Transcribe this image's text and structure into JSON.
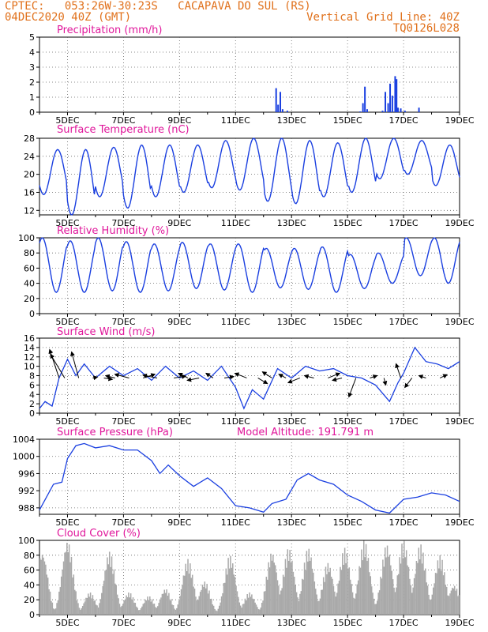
{
  "header": {
    "source_line": "CPTEC:   053:26W-30:23S   CACAPAVA DO SUL (RS)",
    "date_line": "04DEC2020 40Z (GMT)",
    "grid_note": "Vertical Grid Line: 40Z",
    "run_id": "TQ0126L028"
  },
  "colors": {
    "header_text": "#e0701a",
    "panel_title": "#e0179b",
    "series_line": "#1a3fe0",
    "cloud_bar": "#a9a9a9",
    "wind_arrow": "#000000"
  },
  "x_axis": {
    "tick_labels": [
      "5DEC",
      "7DEC",
      "9DEC",
      "11DEC",
      "13DEC",
      "15DEC",
      "17DEC",
      "19DEC"
    ]
  },
  "chart_data": [
    {
      "type": "bar",
      "title": "Precipitation (mm/h)",
      "ylim": [
        0,
        5
      ],
      "yticks": [
        0,
        1,
        2,
        3,
        4,
        5
      ],
      "x_range_days": [
        4.0,
        19.0
      ],
      "points": [
        {
          "day": 12.45,
          "value": 1.6
        },
        {
          "day": 12.52,
          "value": 0.5
        },
        {
          "day": 12.6,
          "value": 1.35
        },
        {
          "day": 12.68,
          "value": 0.2
        },
        {
          "day": 12.85,
          "value": 0.1
        },
        {
          "day": 15.45,
          "value": 0.05
        },
        {
          "day": 15.55,
          "value": 0.6
        },
        {
          "day": 15.62,
          "value": 1.7
        },
        {
          "day": 15.7,
          "value": 0.2
        },
        {
          "day": 16.25,
          "value": 0.1
        },
        {
          "day": 16.35,
          "value": 1.35
        },
        {
          "day": 16.45,
          "value": 0.6
        },
        {
          "day": 16.52,
          "value": 1.9
        },
        {
          "day": 16.6,
          "value": 1.1
        },
        {
          "day": 16.7,
          "value": 2.4
        },
        {
          "day": 16.75,
          "value": 2.2
        },
        {
          "day": 16.8,
          "value": 0.3
        },
        {
          "day": 16.9,
          "value": 0.25
        },
        {
          "day": 17.05,
          "value": 0.1
        },
        {
          "day": 17.55,
          "value": 0.3
        }
      ]
    },
    {
      "type": "line",
      "title": "Surface Temperature (nC)",
      "ylim": [
        11,
        28
      ],
      "yticks": [
        12,
        16,
        20,
        24,
        28
      ],
      "x_range_days": [
        4.0,
        19.0
      ],
      "diurnal_min_max": [
        {
          "day": 4,
          "min": 15.5,
          "max": 25.5
        },
        {
          "day": 5,
          "min": 11.0,
          "max": 25.5
        },
        {
          "day": 6,
          "min": 15.0,
          "max": 26.0
        },
        {
          "day": 7,
          "min": 12.5,
          "max": 26.5
        },
        {
          "day": 8,
          "min": 15.0,
          "max": 26.5
        },
        {
          "day": 9,
          "min": 16.0,
          "max": 26.5
        },
        {
          "day": 10,
          "min": 17.0,
          "max": 27.5
        },
        {
          "day": 11,
          "min": 16.5,
          "max": 28.0
        },
        {
          "day": 12,
          "min": 14.0,
          "max": 28.0
        },
        {
          "day": 13,
          "min": 13.5,
          "max": 27.5
        },
        {
          "day": 14,
          "min": 15.0,
          "max": 27.0
        },
        {
          "day": 15,
          "min": 16.0,
          "max": 28.0
        },
        {
          "day": 16,
          "min": 19.0,
          "max": 28.0
        },
        {
          "day": 17,
          "min": 20.0,
          "max": 27.5
        },
        {
          "day": 18,
          "min": 17.5,
          "max": 26.5
        }
      ]
    },
    {
      "type": "line",
      "title": "Relative Humidity (%)",
      "ylim": [
        0,
        100
      ],
      "yticks": [
        0,
        20,
        40,
        60,
        80,
        100
      ],
      "x_range_days": [
        4.0,
        19.0
      ],
      "diurnal_min_max": [
        {
          "day": 4,
          "min": 28,
          "max": 100
        },
        {
          "day": 5,
          "min": 28,
          "max": 96
        },
        {
          "day": 6,
          "min": 30,
          "max": 100
        },
        {
          "day": 7,
          "min": 28,
          "max": 95
        },
        {
          "day": 8,
          "min": 30,
          "max": 92
        },
        {
          "day": 9,
          "min": 33,
          "max": 94
        },
        {
          "day": 10,
          "min": 31,
          "max": 92
        },
        {
          "day": 11,
          "min": 28,
          "max": 92
        },
        {
          "day": 12,
          "min": 34,
          "max": 86
        },
        {
          "day": 13,
          "min": 32,
          "max": 86
        },
        {
          "day": 14,
          "min": 28,
          "max": 88
        },
        {
          "day": 15,
          "min": 33,
          "max": 78
        },
        {
          "day": 16,
          "min": 40,
          "max": 80
        },
        {
          "day": 17,
          "min": 50,
          "max": 100
        },
        {
          "day": 18,
          "min": 40,
          "max": 100
        }
      ]
    },
    {
      "type": "line",
      "title": "Surface Wind (m/s)",
      "ylim": [
        0,
        16
      ],
      "yticks": [
        0,
        2,
        4,
        6,
        8,
        10,
        12,
        14,
        16
      ],
      "x_range_days": [
        4.0,
        19.0
      ],
      "speed_points": [
        {
          "day": 4.0,
          "value": 1.0
        },
        {
          "day": 4.2,
          "value": 2.5
        },
        {
          "day": 4.45,
          "value": 1.5
        },
        {
          "day": 4.7,
          "value": 7.5
        },
        {
          "day": 5.0,
          "value": 11.5
        },
        {
          "day": 5.3,
          "value": 8.0
        },
        {
          "day": 5.6,
          "value": 10.5
        },
        {
          "day": 6.0,
          "value": 7.5
        },
        {
          "day": 6.5,
          "value": 10.0
        },
        {
          "day": 7.0,
          "value": 8.0
        },
        {
          "day": 7.5,
          "value": 9.5
        },
        {
          "day": 8.0,
          "value": 7.0
        },
        {
          "day": 8.5,
          "value": 10.0
        },
        {
          "day": 9.0,
          "value": 7.5
        },
        {
          "day": 9.5,
          "value": 9.0
        },
        {
          "day": 10.0,
          "value": 7.0
        },
        {
          "day": 10.5,
          "value": 10.0
        },
        {
          "day": 11.0,
          "value": 5.5
        },
        {
          "day": 11.3,
          "value": 1.0
        },
        {
          "day": 11.6,
          "value": 5.0
        },
        {
          "day": 12.0,
          "value": 3.0
        },
        {
          "day": 12.5,
          "value": 9.5
        },
        {
          "day": 13.0,
          "value": 7.5
        },
        {
          "day": 13.5,
          "value": 10.0
        },
        {
          "day": 14.0,
          "value": 9.0
        },
        {
          "day": 14.5,
          "value": 9.5
        },
        {
          "day": 15.0,
          "value": 8.0
        },
        {
          "day": 15.5,
          "value": 7.5
        },
        {
          "day": 16.0,
          "value": 6.0
        },
        {
          "day": 16.5,
          "value": 2.5
        },
        {
          "day": 16.8,
          "value": 6.5
        },
        {
          "day": 17.0,
          "value": 8.5
        },
        {
          "day": 17.4,
          "value": 14.0
        },
        {
          "day": 17.8,
          "value": 11.0
        },
        {
          "day": 18.2,
          "value": 10.5
        },
        {
          "day": 18.6,
          "value": 9.5
        },
        {
          "day": 19.0,
          "value": 11.0
        }
      ],
      "wind_barbs": [
        {
          "day": 4.7,
          "u": -2.0,
          "v": 6.0
        },
        {
          "day": 4.9,
          "u": -3.0,
          "v": 5.0
        },
        {
          "day": 5.4,
          "u": -1.5,
          "v": 5.5
        },
        {
          "day": 5.9,
          "u": 1.0,
          "v": 0.2
        },
        {
          "day": 6.3,
          "u": 1.8,
          "v": -0.3
        },
        {
          "day": 6.7,
          "u": -2.0,
          "v": 0.5
        },
        {
          "day": 7.2,
          "u": -3.0,
          "v": 0.8
        },
        {
          "day": 7.7,
          "u": 2.5,
          "v": 0.8
        },
        {
          "day": 8.2,
          "u": -3.0,
          "v": 0.6
        },
        {
          "day": 8.8,
          "u": 2.5,
          "v": 0.4
        },
        {
          "day": 9.3,
          "u": -2.0,
          "v": 1.0
        },
        {
          "day": 9.7,
          "u": -2.5,
          "v": -0.5
        },
        {
          "day": 10.2,
          "u": -1.5,
          "v": 1.0
        },
        {
          "day": 10.6,
          "u": 2.0,
          "v": 0.3
        },
        {
          "day": 11.4,
          "u": -2.5,
          "v": 1.0
        },
        {
          "day": 11.8,
          "u": 2.0,
          "v": -1.2
        },
        {
          "day": 12.3,
          "u": -2.0,
          "v": 1.3
        },
        {
          "day": 12.8,
          "u": -1.5,
          "v": 0.8
        },
        {
          "day": 13.3,
          "u": -2.5,
          "v": -1.0
        },
        {
          "day": 13.8,
          "u": -2.0,
          "v": 0.5
        },
        {
          "day": 14.3,
          "u": 2.5,
          "v": 1.0
        },
        {
          "day": 14.8,
          "u": -2.0,
          "v": -0.5
        },
        {
          "day": 15.3,
          "u": -1.5,
          "v": -4.0
        },
        {
          "day": 15.8,
          "u": 1.5,
          "v": 0.5
        },
        {
          "day": 16.3,
          "u": 0.4,
          "v": -1.5
        },
        {
          "day": 16.9,
          "u": -1.0,
          "v": 3.0
        },
        {
          "day": 17.3,
          "u": -1.5,
          "v": -2.0
        },
        {
          "day": 17.8,
          "u": -1.5,
          "v": 0.5
        },
        {
          "day": 18.3,
          "u": 1.5,
          "v": 0.7
        }
      ]
    },
    {
      "type": "line",
      "title": "Surface Pressure (hPa)",
      "annotation": "Model Altitude: 191.791 m",
      "ylim": [
        986.5,
        1004
      ],
      "yticks": [
        988,
        992,
        996,
        1000,
        1004
      ],
      "x_range_days": [
        4.0,
        19.0
      ],
      "points": [
        {
          "day": 4.0,
          "value": 987.5
        },
        {
          "day": 4.5,
          "value": 993.5
        },
        {
          "day": 4.8,
          "value": 994.0
        },
        {
          "day": 5.0,
          "value": 999.5
        },
        {
          "day": 5.3,
          "value": 1002.5
        },
        {
          "day": 5.6,
          "value": 1003.0
        },
        {
          "day": 6.0,
          "value": 1002.0
        },
        {
          "day": 6.5,
          "value": 1002.5
        },
        {
          "day": 7.0,
          "value": 1001.5
        },
        {
          "day": 7.5,
          "value": 1001.5
        },
        {
          "day": 8.0,
          "value": 999.0
        },
        {
          "day": 8.3,
          "value": 996.0
        },
        {
          "day": 8.6,
          "value": 998.0
        },
        {
          "day": 9.0,
          "value": 995.5
        },
        {
          "day": 9.5,
          "value": 993.0
        },
        {
          "day": 10.0,
          "value": 995.0
        },
        {
          "day": 10.5,
          "value": 992.5
        },
        {
          "day": 11.0,
          "value": 988.5
        },
        {
          "day": 11.5,
          "value": 988.0
        },
        {
          "day": 12.0,
          "value": 987.0
        },
        {
          "day": 12.3,
          "value": 989.0
        },
        {
          "day": 12.8,
          "value": 990.0
        },
        {
          "day": 13.2,
          "value": 994.5
        },
        {
          "day": 13.6,
          "value": 996.0
        },
        {
          "day": 14.0,
          "value": 994.5
        },
        {
          "day": 14.5,
          "value": 993.5
        },
        {
          "day": 15.0,
          "value": 991.0
        },
        {
          "day": 15.5,
          "value": 989.5
        },
        {
          "day": 16.0,
          "value": 987.5
        },
        {
          "day": 16.5,
          "value": 986.8
        },
        {
          "day": 17.0,
          "value": 990.0
        },
        {
          "day": 17.5,
          "value": 990.5
        },
        {
          "day": 18.0,
          "value": 991.5
        },
        {
          "day": 18.5,
          "value": 991.0
        },
        {
          "day": 19.0,
          "value": 989.5
        }
      ]
    },
    {
      "type": "bar",
      "title": "Cloud Cover (%)",
      "ylim": [
        0,
        100
      ],
      "yticks": [
        0,
        20,
        40,
        60,
        80,
        100
      ],
      "x_range_days": [
        4.0,
        19.0
      ],
      "daily_peaks": [
        {
          "day": 4.1,
          "value": 85
        },
        {
          "day": 5.0,
          "value": 100
        },
        {
          "day": 5.8,
          "value": 30
        },
        {
          "day": 6.5,
          "value": 85
        },
        {
          "day": 7.2,
          "value": 30
        },
        {
          "day": 7.9,
          "value": 25
        },
        {
          "day": 8.5,
          "value": 35
        },
        {
          "day": 9.3,
          "value": 75
        },
        {
          "day": 9.9,
          "value": 45
        },
        {
          "day": 10.8,
          "value": 80
        },
        {
          "day": 11.5,
          "value": 30
        },
        {
          "day": 12.3,
          "value": 85
        },
        {
          "day": 12.9,
          "value": 90
        },
        {
          "day": 13.6,
          "value": 90
        },
        {
          "day": 14.3,
          "value": 70
        },
        {
          "day": 14.9,
          "value": 90
        },
        {
          "day": 15.6,
          "value": 100
        },
        {
          "day": 16.4,
          "value": 95
        },
        {
          "day": 17.0,
          "value": 100
        },
        {
          "day": 17.6,
          "value": 95
        },
        {
          "day": 18.3,
          "value": 80
        },
        {
          "day": 18.8,
          "value": 40
        }
      ]
    }
  ]
}
